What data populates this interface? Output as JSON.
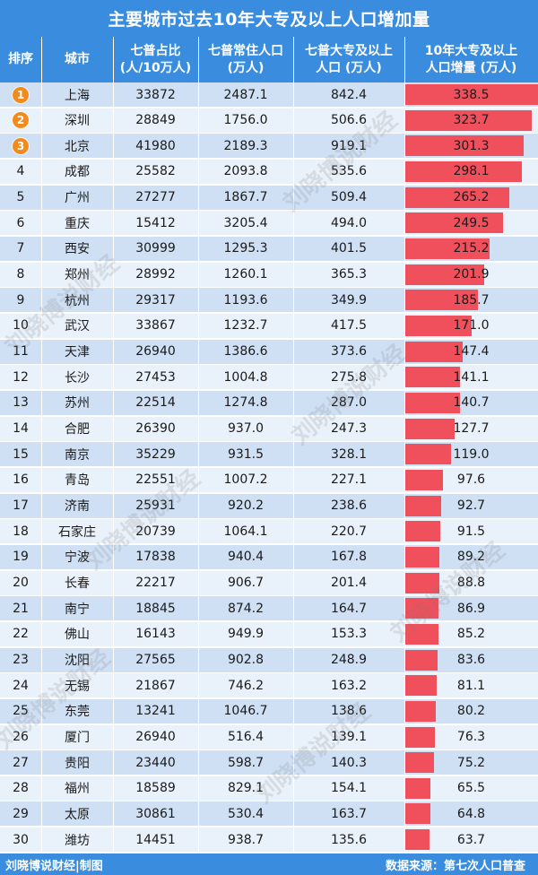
{
  "title": "主要城市过去10年大专及以上人口增加量",
  "headers": {
    "rank": "排序",
    "city": "城市",
    "ratio": [
      "七普占比",
      "(人/10万人)"
    ],
    "population": [
      "七普常住人口",
      "(万人)"
    ],
    "degree": [
      "七普大专及以上",
      "人口 (万人)"
    ],
    "increase": [
      "10年大专及以上",
      "人口增量 (万人)"
    ]
  },
  "watermark": "刘晓博说财经",
  "footer": {
    "left": "刘晓博说财经|制图",
    "right": "数据来源：第七次人口普查"
  },
  "colors": {
    "header": "#3a8dde",
    "bar": "#f0505c",
    "medal": "#f28a1c"
  },
  "chart_data": {
    "type": "table",
    "bar_scale_max": 338.5,
    "columns": [
      "rank",
      "city",
      "ratio",
      "population",
      "degree",
      "increase"
    ],
    "rows": [
      {
        "rank": "1",
        "city": "上海",
        "ratio": "33872",
        "population": "2487.1",
        "degree": "842.4",
        "increase": 338.5
      },
      {
        "rank": "2",
        "city": "深圳",
        "ratio": "28849",
        "population": "1756.0",
        "degree": "506.6",
        "increase": 323.7
      },
      {
        "rank": "3",
        "city": "北京",
        "ratio": "41980",
        "population": "2189.3",
        "degree": "919.1",
        "increase": 301.3
      },
      {
        "rank": "4",
        "city": "成都",
        "ratio": "25582",
        "population": "2093.8",
        "degree": "535.6",
        "increase": 298.1
      },
      {
        "rank": "5",
        "city": "广州",
        "ratio": "27277",
        "population": "1867.7",
        "degree": "509.4",
        "increase": 265.2
      },
      {
        "rank": "6",
        "city": "重庆",
        "ratio": "15412",
        "population": "3205.4",
        "degree": "494.0",
        "increase": 249.5
      },
      {
        "rank": "7",
        "city": "西安",
        "ratio": "30999",
        "population": "1295.3",
        "degree": "401.5",
        "increase": 215.2
      },
      {
        "rank": "8",
        "city": "郑州",
        "ratio": "28992",
        "population": "1260.1",
        "degree": "365.3",
        "increase": 201.9
      },
      {
        "rank": "9",
        "city": "杭州",
        "ratio": "29317",
        "population": "1193.6",
        "degree": "349.9",
        "increase": 185.7
      },
      {
        "rank": "10",
        "city": "武汉",
        "ratio": "33867",
        "population": "1232.7",
        "degree": "417.5",
        "increase": 171.0
      },
      {
        "rank": "11",
        "city": "天津",
        "ratio": "26940",
        "population": "1386.6",
        "degree": "373.6",
        "increase": 147.4
      },
      {
        "rank": "12",
        "city": "长沙",
        "ratio": "27453",
        "population": "1004.8",
        "degree": "275.8",
        "increase": 141.1
      },
      {
        "rank": "13",
        "city": "苏州",
        "ratio": "22514",
        "population": "1274.8",
        "degree": "287.0",
        "increase": 140.7
      },
      {
        "rank": "14",
        "city": "合肥",
        "ratio": "26390",
        "population": "937.0",
        "degree": "247.3",
        "increase": 127.7
      },
      {
        "rank": "15",
        "city": "南京",
        "ratio": "35229",
        "population": "931.5",
        "degree": "328.1",
        "increase": 119.0
      },
      {
        "rank": "16",
        "city": "青岛",
        "ratio": "22551",
        "population": "1007.2",
        "degree": "227.1",
        "increase": 97.6
      },
      {
        "rank": "17",
        "city": "济南",
        "ratio": "25931",
        "population": "920.2",
        "degree": "238.6",
        "increase": 92.7
      },
      {
        "rank": "18",
        "city": "石家庄",
        "ratio": "20739",
        "population": "1064.1",
        "degree": "220.7",
        "increase": 91.5
      },
      {
        "rank": "19",
        "city": "宁波",
        "ratio": "17838",
        "population": "940.4",
        "degree": "167.8",
        "increase": 89.2
      },
      {
        "rank": "20",
        "city": "长春",
        "ratio": "22217",
        "population": "906.7",
        "degree": "201.4",
        "increase": 88.8
      },
      {
        "rank": "21",
        "city": "南宁",
        "ratio": "18845",
        "population": "874.2",
        "degree": "164.7",
        "increase": 86.9
      },
      {
        "rank": "22",
        "city": "佛山",
        "ratio": "16143",
        "population": "949.9",
        "degree": "153.3",
        "increase": 85.2
      },
      {
        "rank": "23",
        "city": "沈阳",
        "ratio": "27565",
        "population": "902.8",
        "degree": "248.9",
        "increase": 83.6
      },
      {
        "rank": "24",
        "city": "无锡",
        "ratio": "21867",
        "population": "746.2",
        "degree": "163.2",
        "increase": 81.1
      },
      {
        "rank": "25",
        "city": "东莞",
        "ratio": "13241",
        "population": "1046.7",
        "degree": "138.6",
        "increase": 80.2
      },
      {
        "rank": "26",
        "city": "厦门",
        "ratio": "26940",
        "population": "516.4",
        "degree": "139.1",
        "increase": 76.3
      },
      {
        "rank": "27",
        "city": "贵阳",
        "ratio": "23440",
        "population": "598.7",
        "degree": "140.3",
        "increase": 75.2
      },
      {
        "rank": "28",
        "city": "福州",
        "ratio": "18589",
        "population": "829.1",
        "degree": "154.1",
        "increase": 65.5
      },
      {
        "rank": "29",
        "city": "太原",
        "ratio": "30861",
        "population": "530.4",
        "degree": "163.7",
        "increase": 64.8
      },
      {
        "rank": "30",
        "city": "潍坊",
        "ratio": "14451",
        "population": "938.7",
        "degree": "135.6",
        "increase": 63.7
      }
    ]
  }
}
